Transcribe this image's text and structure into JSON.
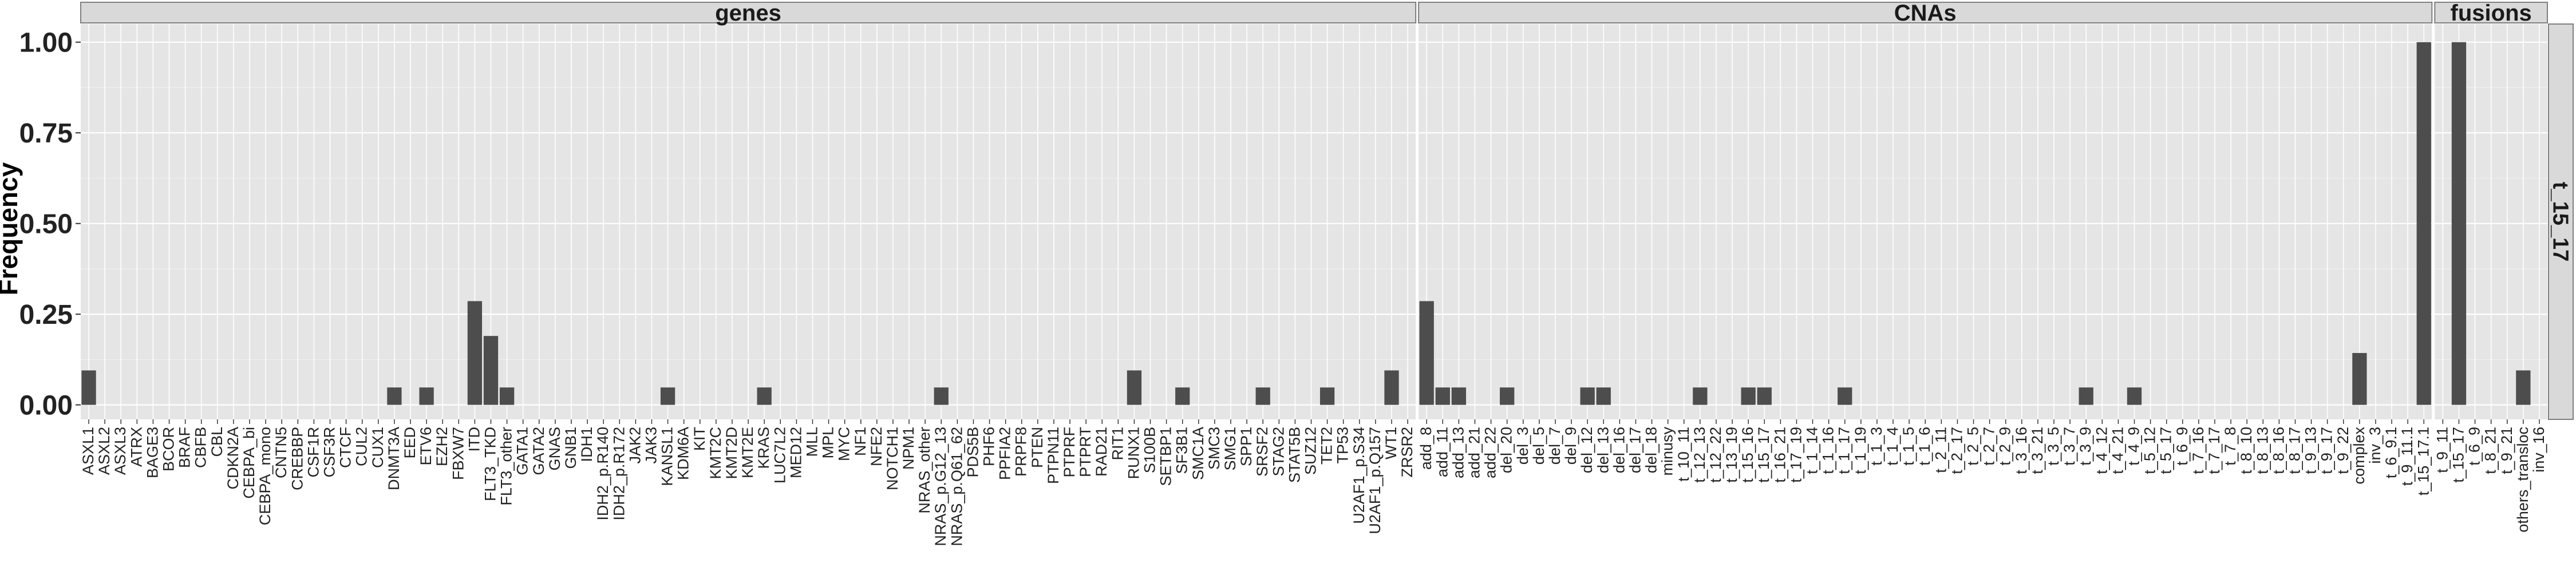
{
  "chart_data": {
    "type": "bar",
    "ylabel": "Frequency",
    "xlabel": "",
    "ylim": [
      -0.04,
      1.05
    ],
    "yticks": [
      0.0,
      0.25,
      0.5,
      0.75,
      1.0
    ],
    "ytick_labels": [
      "0.00",
      "0.25",
      "0.50",
      "0.75",
      "1.00"
    ],
    "grid": true,
    "row_facet_label": "t_15_17",
    "bar_color": "#4d4d4d",
    "panel_background": "#e5e5e5",
    "strip_background": "#d9d9d9",
    "facets": [
      {
        "label": "genes",
        "categories": [
          "ASXL1",
          "ASXL2",
          "ASXL3",
          "ATRX",
          "BAGE3",
          "BCOR",
          "BRAF",
          "CBFB",
          "CBL",
          "CDKN2A",
          "CEBPA_bi",
          "CEBPA_mono",
          "CNTN5",
          "CREBBP",
          "CSF1R",
          "CSF3R",
          "CTCF",
          "CUL2",
          "CUX1",
          "DNMT3A",
          "EED",
          "ETV6",
          "EZH2",
          "FBXW7",
          "ITD",
          "FLT3_TKD",
          "FLT3_other",
          "GATA1",
          "GATA2",
          "GNAS",
          "GNB1",
          "IDH1",
          "IDH2_p.R140",
          "IDH2_p.R172",
          "JAK2",
          "JAK3",
          "KANSL1",
          "KDM6A",
          "KIT",
          "KMT2C",
          "KMT2D",
          "KMT2E",
          "KRAS",
          "LUC7L2",
          "MED12",
          "MLL",
          "MPL",
          "MYC",
          "NF1",
          "NFE2",
          "NOTCH1",
          "NPM1",
          "NRAS_other",
          "NRAS_p.G12_13",
          "NRAS_p.Q61_62",
          "PDS5B",
          "PHF6",
          "PPFIA2",
          "PRPF8",
          "PTEN",
          "PTPN11",
          "PTPRF",
          "PTPRT",
          "RAD21",
          "RIT1",
          "RUNX1",
          "S100B",
          "SETBP1",
          "SF3B1",
          "SMC1A",
          "SMC3",
          "SMG1",
          "SPP1",
          "SRSF2",
          "STAG2",
          "STAT5B",
          "SUZ12",
          "TET2",
          "TP53",
          "U2AF1_p.S34",
          "U2AF1_p.Q157",
          "WT1",
          "ZRSR2"
        ],
        "values": [
          0.095,
          0,
          0,
          0,
          0,
          0,
          0,
          0,
          0,
          0,
          0,
          0,
          0,
          0,
          0,
          0,
          0,
          0,
          0,
          0.048,
          0,
          0.048,
          0,
          0,
          0.286,
          0.19,
          0.048,
          0,
          0,
          0,
          0,
          0,
          0,
          0,
          0,
          0,
          0.048,
          0,
          0,
          0,
          0,
          0,
          0.048,
          0,
          0,
          0,
          0,
          0,
          0,
          0,
          0,
          0,
          0,
          0.048,
          0,
          0,
          0,
          0,
          0,
          0,
          0,
          0,
          0,
          0,
          0,
          0.095,
          0,
          0,
          0.048,
          0,
          0,
          0,
          0,
          0.048,
          0,
          0,
          0,
          0.048,
          0,
          0,
          0,
          0.095,
          0
        ]
      },
      {
        "label": "CNAs",
        "categories": [
          "add_8",
          "add_11",
          "add_13",
          "add_21",
          "add_22",
          "del_20",
          "del_3",
          "del_5",
          "del_7",
          "del_9",
          "del_12",
          "del_13",
          "del_16",
          "del_17",
          "del_18",
          "minusy",
          "t_10_11",
          "t_12_13",
          "t_12_22",
          "t_13_19",
          "t_15_16",
          "t_15_17",
          "t_16_21",
          "t_17_19",
          "t_1_14",
          "t_1_16",
          "t_1_17",
          "t_1_19",
          "t_1_3",
          "t_1_4",
          "t_1_5",
          "t_1_6",
          "t_2_11",
          "t_2_17",
          "t_2_5",
          "t_2_7",
          "t_2_9",
          "t_3_16",
          "t_3_21",
          "t_3_5",
          "t_3_7",
          "t_3_9",
          "t_4_12",
          "t_4_21",
          "t_4_9",
          "t_5_12",
          "t_5_17",
          "t_6_9",
          "t_7_16",
          "t_7_17",
          "t_7_8",
          "t_8_10",
          "t_8_13",
          "t_8_16",
          "t_8_17",
          "t_9_13",
          "t_9_17",
          "t_9_22",
          "complex",
          "inv_3",
          "t_6_9.1",
          "t_9_11.1",
          "t_15_17.1"
        ],
        "values": [
          0.286,
          0.048,
          0.048,
          0,
          0,
          0.048,
          0,
          0,
          0,
          0,
          0.048,
          0.048,
          0,
          0,
          0,
          0,
          0,
          0.048,
          0,
          0,
          0.048,
          0.048,
          0,
          0,
          0,
          0,
          0.048,
          0,
          0,
          0,
          0,
          0,
          0,
          0,
          0,
          0,
          0,
          0,
          0,
          0,
          0,
          0.048,
          0,
          0,
          0.048,
          0,
          0,
          0,
          0,
          0,
          0,
          0,
          0,
          0,
          0,
          0,
          0,
          0,
          0.143,
          0,
          0,
          0,
          1.0
        ]
      },
      {
        "label": "fusions",
        "categories": [
          "t_9_11",
          "t_15_17",
          "t_6_9",
          "t_8_21",
          "t_9_21",
          "others_transloc",
          "inv_16"
        ],
        "values": [
          0,
          1.0,
          0,
          0,
          0,
          0.095,
          0
        ]
      }
    ]
  }
}
